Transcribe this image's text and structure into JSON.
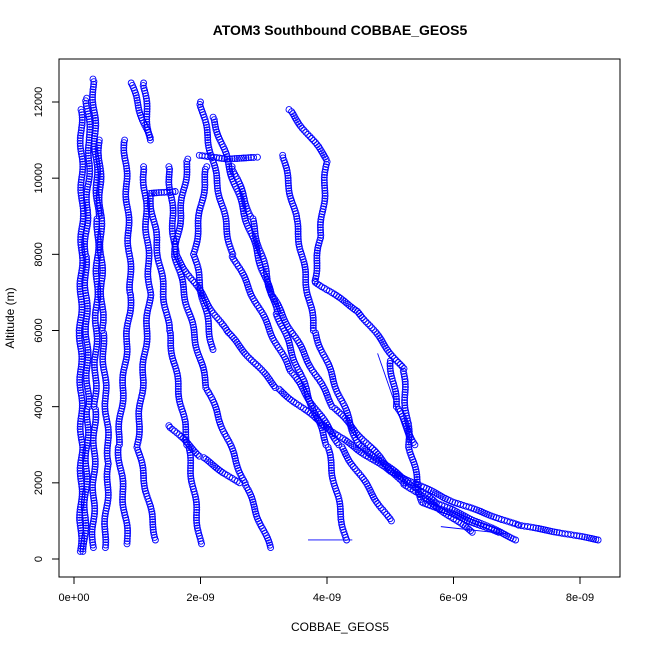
{
  "chart_data": {
    "type": "scatter",
    "title": "ATOM3 Southbound COBBAE_GEOS5",
    "xlabel": "COBBAE_GEOS5",
    "ylabel": "Altitude (m)",
    "xlim": [
      0,
      8.3e-09
    ],
    "ylim": [
      0,
      12600
    ],
    "xticks": [
      0,
      2e-09,
      4e-09,
      6e-09,
      8e-09
    ],
    "xtick_labels": [
      "0e+00",
      "2e-09",
      "4e-09",
      "6e-09",
      "8e-09"
    ],
    "yticks": [
      0,
      2000,
      4000,
      6000,
      8000,
      10000,
      12000
    ],
    "ytick_labels": [
      "0",
      "2000",
      "4000",
      "6000",
      "8000",
      "10000",
      "12000"
    ],
    "grid": false,
    "marker": "open-circle",
    "color": "#0000ff",
    "profiles": [
      [
        [
          1e-10,
          200
        ],
        [
          1.2e-10,
          3000
        ],
        [
          1e-10,
          6000
        ],
        [
          1.3e-10,
          9000
        ],
        [
          1.1e-10,
          11800
        ]
      ],
      [
        [
          1.6e-10,
          200
        ],
        [
          2.2e-10,
          4000
        ],
        [
          1.8e-10,
          8000
        ],
        [
          2.5e-10,
          11000
        ],
        [
          2e-10,
          12100
        ]
      ],
      [
        [
          3e-10,
          300
        ],
        [
          3.3e-10,
          4000
        ],
        [
          3.8e-10,
          9000
        ],
        [
          3e-10,
          12600
        ]
      ],
      [
        [
          4.8e-10,
          300
        ],
        [
          5.5e-10,
          2500
        ],
        [
          4.5e-10,
          6000
        ],
        [
          4e-10,
          11000
        ]
      ],
      [
        [
          8.5e-10,
          400
        ],
        [
          7e-10,
          3000
        ],
        [
          9e-10,
          7000
        ],
        [
          8e-10,
          11000
        ]
      ],
      [
        [
          1.3e-09,
          500
        ],
        [
          1e-09,
          3000
        ],
        [
          1.2e-09,
          7000
        ],
        [
          1.1e-09,
          10300
        ]
      ],
      [
        [
          2e-09,
          400
        ],
        [
          1.8e-09,
          3000
        ],
        [
          1.5e-09,
          6000
        ],
        [
          1.2e-09,
          9600
        ],
        [
          1.6e-09,
          9650
        ]
      ],
      [
        [
          3.1e-09,
          300
        ],
        [
          2.7e-09,
          2000
        ],
        [
          2.1e-09,
          4500
        ],
        [
          1.6e-09,
          8000
        ],
        [
          1.5e-09,
          10300
        ]
      ],
      [
        [
          2e-09,
          10600
        ],
        [
          2.4e-09,
          10500
        ],
        [
          2.9e-09,
          10550
        ]
      ],
      [
        [
          2.2e-09,
          5500
        ],
        [
          1.9e-09,
          8000
        ],
        [
          2.1e-09,
          10300
        ]
      ],
      [
        [
          5e-09,
          1000
        ],
        [
          4.2e-09,
          3000
        ],
        [
          3.4e-09,
          5000
        ],
        [
          2.5e-09,
          8000
        ],
        [
          2e-09,
          12000
        ]
      ],
      [
        [
          6.3e-09,
          700
        ],
        [
          5.2e-09,
          2000
        ],
        [
          4.1e-09,
          4000
        ],
        [
          3.1e-09,
          7000
        ],
        [
          2.2e-09,
          11600
        ]
      ],
      [
        [
          7e-09,
          500
        ],
        [
          5.7e-09,
          1500
        ],
        [
          4.5e-09,
          3000
        ],
        [
          3.8e-09,
          6000
        ],
        [
          3.5e-09,
          9000
        ],
        [
          3.3e-09,
          10600
        ]
      ],
      [
        [
          4.3e-09,
          500
        ],
        [
          4e-09,
          3000
        ],
        [
          3.2e-09,
          6500
        ],
        [
          2.8e-09,
          9000
        ],
        [
          2.5e-09,
          10300
        ]
      ],
      [
        [
          6.7e-09,
          700
        ],
        [
          5.5e-09,
          1500
        ],
        [
          5.3e-09,
          3000
        ],
        [
          5.2e-09,
          5000
        ],
        [
          4.5e-09,
          6500
        ],
        [
          3.8e-09,
          7300
        ],
        [
          3.9e-09,
          8500
        ],
        [
          4e-09,
          10500
        ],
        [
          3.4e-09,
          11800
        ]
      ],
      [
        [
          8.3e-09,
          500
        ],
        [
          7e-09,
          900
        ],
        [
          6e-09,
          1500
        ],
        [
          5e-09,
          2300
        ],
        [
          4.2e-09,
          3200
        ],
        [
          3.2e-09,
          4500
        ],
        [
          2.4e-09,
          6000
        ],
        [
          1.6e-09,
          8000
        ],
        [
          1.8e-09,
          10500
        ]
      ],
      [
        [
          5.4e-09,
          3000
        ],
        [
          5.1e-09,
          4000
        ],
        [
          5e-09,
          5200
        ]
      ],
      [
        [
          2.6e-09,
          2000
        ],
        [
          2e-09,
          2700
        ],
        [
          1.5e-09,
          3500
        ]
      ],
      [
        [
          9e-10,
          12500
        ],
        [
          1.2e-09,
          11000
        ],
        [
          1.1e-09,
          12500
        ]
      ]
    ],
    "connector_lines": [
      [
        [
          5.3e-09,
          3000
        ],
        [
          4.8e-09,
          5400
        ]
      ],
      [
        [
          3.7e-09,
          500
        ],
        [
          4.4e-09,
          500
        ]
      ],
      [
        [
          5.8e-09,
          850
        ],
        [
          6.9e-09,
          650
        ]
      ]
    ]
  }
}
